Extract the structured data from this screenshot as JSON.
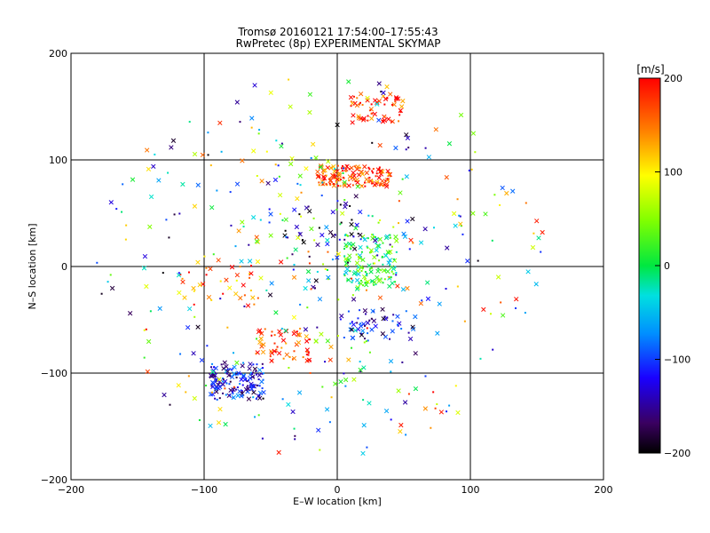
{
  "chart_data": {
    "type": "scatter",
    "title": "Tromsø 20160121 17:54:00–17:55:43",
    "subtitle": "RwPretec (8p) EXPERIMENTAL SKYMAP",
    "xlabel": "E–W location [km]",
    "ylabel": "N–S location [km]",
    "xlim": [
      -200,
      200
    ],
    "ylim": [
      -200,
      200
    ],
    "x_ticks": [
      -200,
      -100,
      0,
      100,
      200
    ],
    "y_ticks": [
      -200,
      -100,
      0,
      100,
      200
    ],
    "grid": true,
    "markers": [
      "x",
      "."
    ],
    "colorbar": {
      "label": "[m/s]",
      "range": [
        -200,
        200
      ],
      "ticks": [
        200,
        100,
        0,
        -100,
        -200
      ],
      "colormap": "rainbow (black–purple–blue–cyan–green–yellow–red)"
    },
    "clusters": [
      {
        "x": [
          -95,
          -55
        ],
        "y": [
          -125,
          -90
        ],
        "velocity": -120,
        "density": "dense"
      },
      {
        "x": [
          -15,
          40
        ],
        "y": [
          75,
          95
        ],
        "velocity": 180,
        "density": "dense"
      },
      {
        "x": [
          5,
          45
        ],
        "y": [
          -20,
          30
        ],
        "velocity": 10,
        "density": "dense"
      },
      {
        "x": [
          10,
          50
        ],
        "y": [
          135,
          160
        ],
        "velocity": 190,
        "density": "medium"
      },
      {
        "x": [
          -60,
          -20
        ],
        "y": [
          -90,
          -60
        ],
        "velocity": 190,
        "density": "medium"
      },
      {
        "x": [
          0,
          60
        ],
        "y": [
          -70,
          -40
        ],
        "velocity": -130,
        "density": "medium"
      },
      {
        "x": [
          -120,
          -60
        ],
        "y": [
          -40,
          10
        ],
        "velocity": 150,
        "density": "sparse"
      },
      {
        "x": [
          -40,
          20
        ],
        "y": [
          20,
          60
        ],
        "velocity": -160,
        "density": "sparse"
      }
    ]
  }
}
